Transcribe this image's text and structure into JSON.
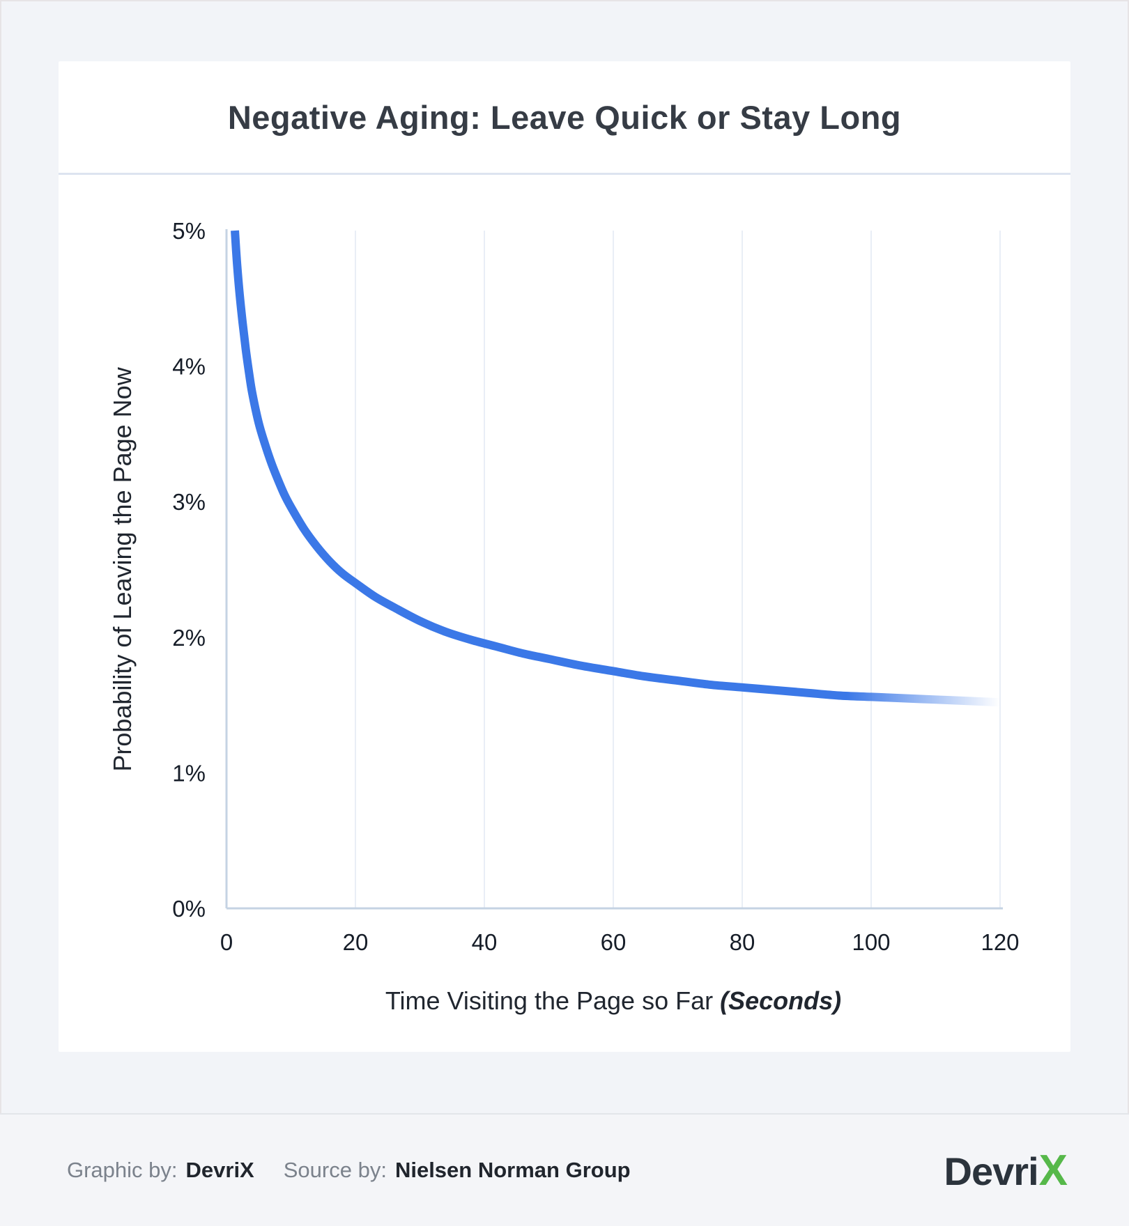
{
  "page": {
    "title": "Negative Aging: Leave Quick or Stay Long"
  },
  "footer": {
    "graphic_by_label": "Graphic by:",
    "graphic_by_value": "DevriX",
    "source_by_label": "Source by:",
    "source_by_value": "Nielsen Norman Group",
    "logo_text": "Devri",
    "logo_x": "X"
  },
  "colors": {
    "line": "#3b78e7",
    "grid": "#e9eef6",
    "axis": "#c5d3e3",
    "title_text": "#363c45",
    "logo_green": "#56b84a",
    "page_bg": "#f2f4f8",
    "footer_bg": "#f4f5f8"
  },
  "chart_data": {
    "type": "line",
    "title": "Negative Aging: Leave Quick or Stay Long",
    "xlabel": "Time Visiting the Page so Far",
    "xlabel_note": "(Seconds)",
    "ylabel": "Probability of Leaving the Page Now",
    "xlim": [
      0,
      120
    ],
    "ylim": [
      0,
      5
    ],
    "x_ticks": [
      0,
      20,
      40,
      60,
      80,
      100,
      120
    ],
    "y_ticks": [
      0,
      1,
      2,
      3,
      4,
      5
    ],
    "y_tick_suffix": "%",
    "grid": "vertical-only",
    "legend": "none",
    "line_color": "#3b78e7",
    "line_fades_at_right_end": true,
    "series": [
      {
        "name": "probability_of_leaving_page",
        "x": [
          1.3,
          1.6,
          2,
          2.5,
          3,
          3.5,
          4,
          5,
          6,
          7,
          8,
          9,
          10,
          12,
          14,
          16,
          18,
          20,
          23,
          26,
          30,
          34,
          38,
          42,
          46,
          50,
          55,
          60,
          65,
          70,
          75,
          80,
          85,
          90,
          95,
          100,
          105,
          110,
          115,
          120
        ],
        "y": [
          5.0,
          4.78,
          4.55,
          4.32,
          4.12,
          3.95,
          3.8,
          3.58,
          3.42,
          3.28,
          3.16,
          3.05,
          2.96,
          2.8,
          2.67,
          2.56,
          2.47,
          2.4,
          2.3,
          2.22,
          2.12,
          2.04,
          1.98,
          1.93,
          1.88,
          1.84,
          1.79,
          1.75,
          1.71,
          1.68,
          1.65,
          1.63,
          1.61,
          1.59,
          1.57,
          1.56,
          1.55,
          1.54,
          1.53,
          1.52
        ]
      }
    ]
  }
}
